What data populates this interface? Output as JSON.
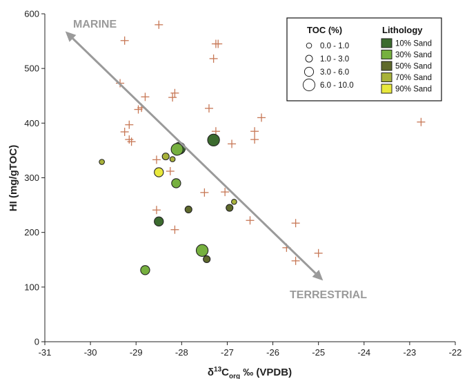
{
  "chart_data": {
    "type": "scatter",
    "xlabel": {
      "prefix": "δ",
      "sup": "13",
      "main": "C",
      "sub": "org",
      "suffix": " ‰ (VPDB)"
    },
    "ylabel": "HI (mg/gTOC)",
    "xlim": [
      -31,
      -22
    ],
    "ylim": [
      0,
      600
    ],
    "xticks": [
      "-31",
      "-30",
      "-29",
      "-28",
      "-27",
      "-26",
      "-25",
      "-24",
      "-23",
      "-22"
    ],
    "yticks": [
      "0",
      "100",
      "200",
      "300",
      "400",
      "500",
      "600"
    ],
    "annotations": {
      "marine": "MARINE",
      "terrestrial": "TERRESTRIAL",
      "arrow": {
        "start": [
          -30.55,
          568
        ],
        "end": [
          -24.9,
          112
        ]
      }
    },
    "legend": {
      "placement": "top-right",
      "toc_title": "TOC (%)",
      "toc_entries": [
        {
          "label": "0.0 - 1.0",
          "size_class": 1
        },
        {
          "label": "1.0 - 3.0",
          "size_class": 2
        },
        {
          "label": "3.0 - 6.0",
          "size_class": 3
        },
        {
          "label": "6.0 - 10.0",
          "size_class": 4
        }
      ],
      "lith_title": "Lithology",
      "lith_entries": [
        {
          "label": "10% Sand",
          "color": "#3c6b2f"
        },
        {
          "label": "30% Sand",
          "color": "#76b03f"
        },
        {
          "label": "50% Sand",
          "color": "#5f6a2c"
        },
        {
          "label": "70% Sand",
          "color": "#a8b23a"
        },
        {
          "label": "90% Sand",
          "color": "#e8e83c"
        }
      ]
    },
    "cross_color": "#c77755",
    "crosses": [
      [
        -28.5,
        580
      ],
      [
        -29.25,
        551
      ],
      [
        -27.25,
        545
      ],
      [
        -27.2,
        545
      ],
      [
        -27.3,
        518
      ],
      [
        -29.35,
        473
      ],
      [
        -28.15,
        455
      ],
      [
        -28.2,
        447
      ],
      [
        -28.8,
        448
      ],
      [
        -28.95,
        425
      ],
      [
        -28.88,
        428
      ],
      [
        -27.4,
        427
      ],
      [
        -26.25,
        410
      ],
      [
        -29.15,
        397
      ],
      [
        -26.4,
        385
      ],
      [
        -27.25,
        385
      ],
      [
        -29.25,
        384
      ],
      [
        -29.15,
        370
      ],
      [
        -29.1,
        366
      ],
      [
        -26.9,
        362
      ],
      [
        -26.4,
        370
      ],
      [
        -22.75,
        402
      ],
      [
        -28.55,
        333
      ],
      [
        -28.25,
        312
      ],
      [
        -27.5,
        273
      ],
      [
        -27.05,
        274
      ],
      [
        -28.55,
        241
      ],
      [
        -28.15,
        205
      ],
      [
        -26.5,
        222
      ],
      [
        -25.5,
        217
      ],
      [
        -25.7,
        172
      ],
      [
        -25.5,
        148
      ],
      [
        -25.0,
        162
      ]
    ],
    "circles": [
      [
        -29.75,
        329,
        1,
        4
      ],
      [
        -28.35,
        339,
        2,
        4
      ],
      [
        -28.2,
        334,
        1,
        4
      ],
      [
        -28.5,
        310,
        3,
        5
      ],
      [
        -28.05,
        354,
        4,
        1
      ],
      [
        -28.1,
        352,
        4,
        2
      ],
      [
        -27.3,
        369,
        4,
        1
      ],
      [
        -28.12,
        290,
        3,
        2
      ],
      [
        -27.85,
        242,
        2,
        3
      ],
      [
        -26.85,
        256,
        1,
        4
      ],
      [
        -26.95,
        245,
        2,
        3
      ],
      [
        -28.5,
        220,
        3,
        1
      ],
      [
        -27.55,
        167,
        4,
        2
      ],
      [
        -27.45,
        151,
        2,
        3
      ],
      [
        -28.8,
        131,
        3,
        2
      ]
    ]
  }
}
